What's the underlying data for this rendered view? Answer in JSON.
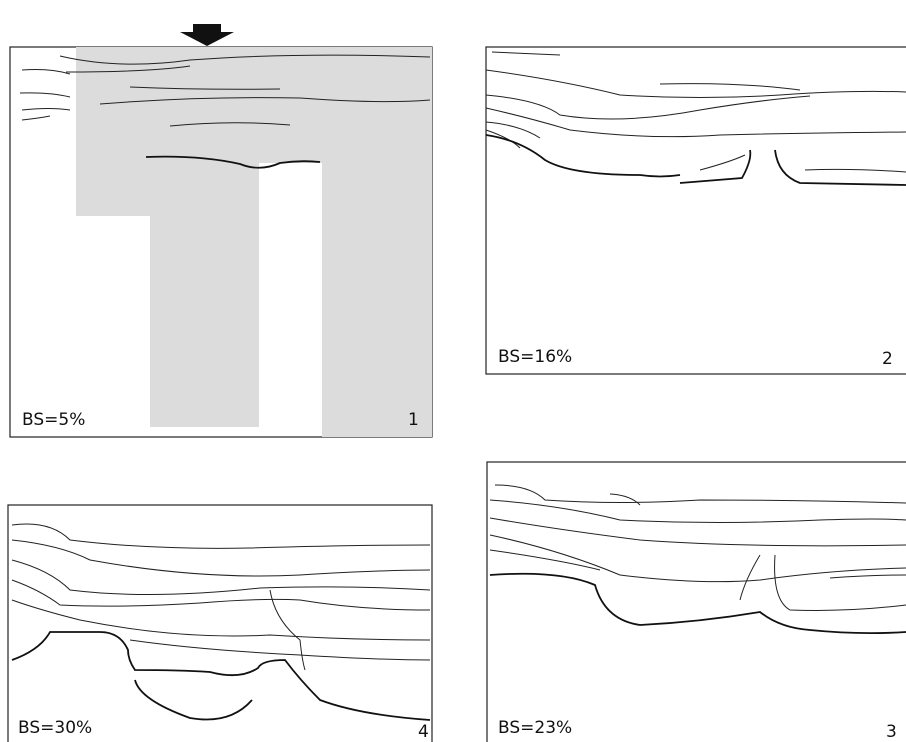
{
  "panels": [
    {
      "label": "BS=5%",
      "number": "1"
    },
    {
      "label": "BS=16%",
      "number": "2"
    },
    {
      "label": "BS=30%",
      "number": "4"
    },
    {
      "label": "BS=23%",
      "number": "3"
    }
  ]
}
